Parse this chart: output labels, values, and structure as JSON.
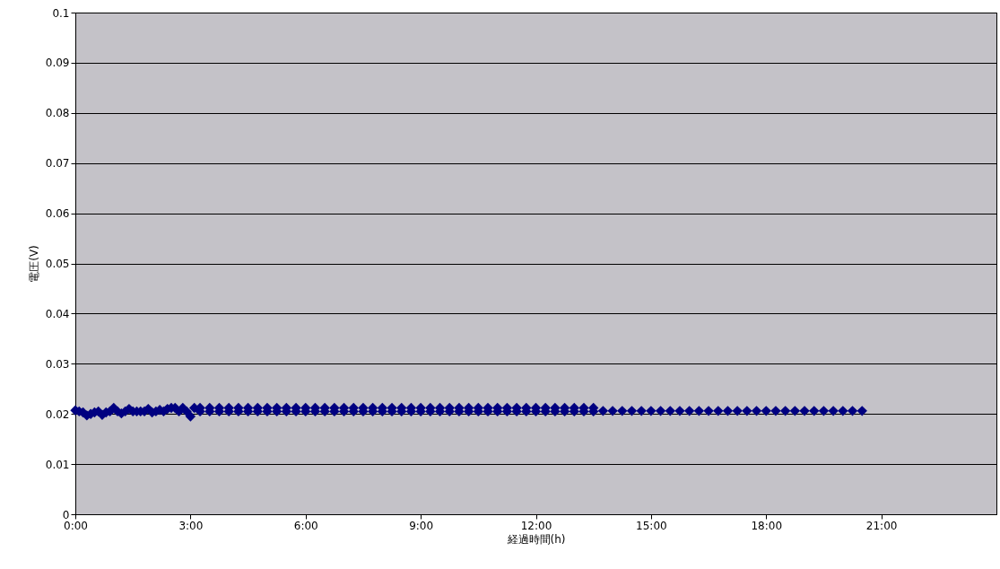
{
  "chart_data": {
    "type": "scatter",
    "xlabel": "経過時間(h)",
    "ylabel": "電圧(V)",
    "xlim": [
      0,
      24
    ],
    "xticks": [
      {
        "value": 0,
        "label": "0:00"
      },
      {
        "value": 3,
        "label": "3:00"
      },
      {
        "value": 6,
        "label": "6:00"
      },
      {
        "value": 9,
        "label": "9:00"
      },
      {
        "value": 12,
        "label": "12:00"
      },
      {
        "value": 15,
        "label": "15:00"
      },
      {
        "value": 18,
        "label": "18:00"
      },
      {
        "value": 21,
        "label": "21:00"
      }
    ],
    "ylim": [
      0,
      0.1
    ],
    "yticks": [
      0,
      0.01,
      0.02,
      0.03,
      0.04,
      0.05,
      0.06,
      0.07,
      0.08,
      0.09,
      0.1
    ],
    "grid": "y",
    "marker": "diamond",
    "series": [
      {
        "color": "#000080",
        "x": [
          0,
          0.1,
          0.2,
          0.3,
          0.4,
          0.5,
          0.6,
          0.7,
          0.8,
          0.9,
          1.0,
          1.1,
          1.2,
          1.3,
          1.4,
          1.5,
          1.6,
          1.7,
          1.8,
          1.9,
          2.0,
          2.1,
          2.2,
          2.3,
          2.4,
          2.5,
          2.6,
          2.7,
          2.8,
          2.9,
          3.0,
          3.1,
          3.25,
          3.25,
          3.5,
          3.5,
          3.75,
          3.75,
          4.0,
          4.0,
          4.25,
          4.25,
          4.5,
          4.5,
          4.75,
          4.75,
          5.0,
          5.0,
          5.25,
          5.25,
          5.5,
          5.5,
          5.75,
          5.75,
          6.0,
          6.0,
          6.25,
          6.25,
          6.5,
          6.5,
          6.75,
          6.75,
          7.0,
          7.0,
          7.25,
          7.25,
          7.5,
          7.5,
          7.75,
          7.75,
          8.0,
          8.0,
          8.25,
          8.25,
          8.5,
          8.5,
          8.75,
          8.75,
          9.0,
          9.0,
          9.25,
          9.25,
          9.5,
          9.5,
          9.75,
          9.75,
          10.0,
          10.0,
          10.25,
          10.25,
          10.5,
          10.5,
          10.75,
          10.75,
          11.0,
          11.0,
          11.25,
          11.25,
          11.5,
          11.5,
          11.75,
          11.75,
          12.0,
          12.0,
          12.25,
          12.25,
          12.5,
          12.5,
          12.75,
          12.75,
          13.0,
          13.0,
          13.25,
          13.25,
          13.5,
          13.5,
          13.75,
          14.0,
          14.25,
          14.5,
          14.75,
          15.0,
          15.25,
          15.5,
          15.75,
          16.0,
          16.25,
          16.5,
          16.75,
          17.0,
          17.25,
          17.5,
          17.75,
          18.0,
          18.25,
          18.5,
          18.75,
          19.0,
          19.25,
          19.5,
          19.75,
          20.0,
          20.25,
          20.5
        ],
        "values": [
          0.0207,
          0.0205,
          0.0203,
          0.0197,
          0.02,
          0.0203,
          0.0205,
          0.0198,
          0.0203,
          0.0205,
          0.0212,
          0.0205,
          0.0201,
          0.0205,
          0.021,
          0.0205,
          0.0205,
          0.0205,
          0.0205,
          0.021,
          0.0203,
          0.0205,
          0.0208,
          0.0205,
          0.021,
          0.0212,
          0.0212,
          0.0205,
          0.0212,
          0.0205,
          0.0195,
          0.0212,
          0.0212,
          0.0205,
          0.0212,
          0.0205,
          0.0212,
          0.0205,
          0.0212,
          0.0205,
          0.0212,
          0.0205,
          0.0212,
          0.0205,
          0.0212,
          0.0205,
          0.0212,
          0.0205,
          0.0212,
          0.0205,
          0.0212,
          0.0205,
          0.0212,
          0.0205,
          0.0212,
          0.0205,
          0.0212,
          0.0205,
          0.0212,
          0.0205,
          0.0212,
          0.0205,
          0.0212,
          0.0205,
          0.0212,
          0.0205,
          0.0212,
          0.0205,
          0.0212,
          0.0205,
          0.0212,
          0.0205,
          0.0212,
          0.0205,
          0.0212,
          0.0205,
          0.0212,
          0.0205,
          0.0212,
          0.0205,
          0.0212,
          0.0205,
          0.0212,
          0.0205,
          0.0212,
          0.0205,
          0.0212,
          0.0205,
          0.0212,
          0.0205,
          0.0212,
          0.0205,
          0.0212,
          0.0205,
          0.0212,
          0.0205,
          0.0212,
          0.0205,
          0.0212,
          0.0205,
          0.0212,
          0.0205,
          0.0212,
          0.0205,
          0.0212,
          0.0205,
          0.0212,
          0.0205,
          0.0212,
          0.0205,
          0.0212,
          0.0205,
          0.0212,
          0.0205,
          0.0212,
          0.0205,
          0.0206,
          0.0206,
          0.0206,
          0.0206,
          0.0206,
          0.0206,
          0.0206,
          0.0206,
          0.0206,
          0.0206,
          0.0206,
          0.0206,
          0.0206,
          0.0206,
          0.0206,
          0.0206,
          0.0206,
          0.0206,
          0.0206,
          0.0206,
          0.0206,
          0.0206,
          0.0206,
          0.0206,
          0.0206,
          0.0206,
          0.0206,
          0.0206
        ]
      }
    ]
  }
}
